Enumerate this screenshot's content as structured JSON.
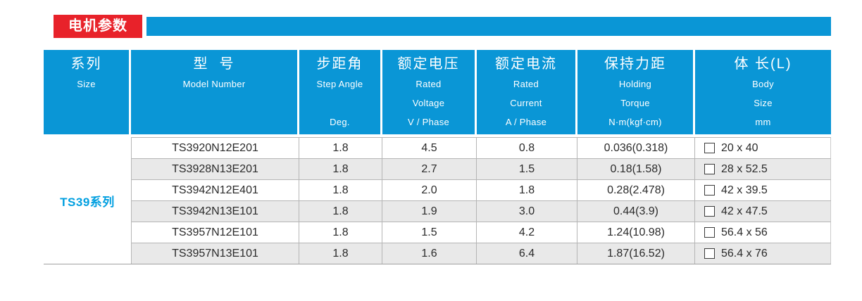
{
  "title": {
    "label": "电机参数"
  },
  "colors": {
    "accent_red": "#e8222a",
    "accent_blue": "#0a96d6",
    "series_text_blue": "#009fe0",
    "row_alt_gray": "#e9e9e9",
    "grid_line": "#b5b5b5"
  },
  "table": {
    "headers": [
      {
        "zh": "系列",
        "en1": "Size",
        "en2": "",
        "en3": ""
      },
      {
        "zh": "型  号",
        "en1": "Model Number",
        "en2": "",
        "en3": ""
      },
      {
        "zh": "步距角",
        "en1": "Step Angle",
        "en2": "",
        "en3": "Deg."
      },
      {
        "zh": "额定电压",
        "en1": "Rated",
        "en2": "Voltage",
        "en3": "V / Phase"
      },
      {
        "zh": "额定电流",
        "en1": "Rated",
        "en2": "Current",
        "en3": "A / Phase"
      },
      {
        "zh": "保持力距",
        "en1": "Holding",
        "en2": "Torque",
        "en3": "N·m(kgf·cm)"
      },
      {
        "zh": "体 长(L)",
        "en1": "Body",
        "en2": "Size",
        "en3": "mm"
      }
    ],
    "series_label": "TS39系列",
    "rows": [
      {
        "model": "TS3920N12E201",
        "step_angle": "1.8",
        "voltage": "4.5",
        "current": "0.8",
        "torque": "0.036(0.318)",
        "body": "20 x 40"
      },
      {
        "model": "TS3928N13E201",
        "step_angle": "1.8",
        "voltage": "2.7",
        "current": "1.5",
        "torque": "0.18(1.58)",
        "body": "28 x 52.5"
      },
      {
        "model": "TS3942N12E401",
        "step_angle": "1.8",
        "voltage": "2.0",
        "current": "1.8",
        "torque": "0.28(2.478)",
        "body": "42 x 39.5"
      },
      {
        "model": "TS3942N13E101",
        "step_angle": "1.8",
        "voltage": "1.9",
        "current": "3.0",
        "torque": "0.44(3.9)",
        "body": "42 x 47.5"
      },
      {
        "model": "TS3957N12E101",
        "step_angle": "1.8",
        "voltage": "1.5",
        "current": "4.2",
        "torque": "1.24(10.98)",
        "body": "56.4 x 56"
      },
      {
        "model": "TS3957N13E101",
        "step_angle": "1.8",
        "voltage": "1.6",
        "current": "6.4",
        "torque": "1.87(16.52)",
        "body": "56.4 x 76"
      }
    ]
  }
}
